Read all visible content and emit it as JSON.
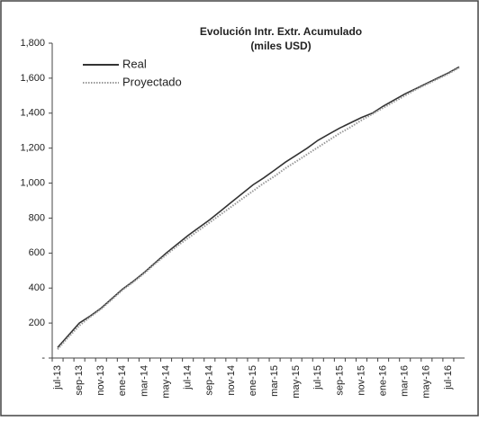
{
  "chart_data": {
    "type": "line",
    "title": "Evolución Intr. Extr. Acumulado",
    "subtitle": "(miles USD)",
    "categories": [
      "jul-13",
      null,
      "sep-13",
      null,
      "nov-13",
      null,
      "ene-14",
      null,
      "mar-14",
      null,
      "may-14",
      null,
      "jul-14",
      null,
      "sep-14",
      null,
      "nov-14",
      null,
      "ene-15",
      null,
      "mar-15",
      null,
      "may-15",
      null,
      "jul-15",
      null,
      "sep-15",
      null,
      "nov-15",
      null,
      "ene-16",
      null,
      "mar-16",
      null,
      "may-16",
      null,
      "jul-16",
      null
    ],
    "series": [
      {
        "name": "Real",
        "color": "#333333",
        "dash": "solid",
        "values": [
          60,
          130,
          200,
          240,
          285,
          340,
          395,
          440,
          490,
          545,
          600,
          650,
          700,
          745,
          790,
          840,
          890,
          940,
          990,
          1030,
          1075,
          1120,
          1160,
          1200,
          1245,
          1280,
          1315,
          1345,
          1375,
          1400,
          1440,
          1475,
          1510,
          1540,
          1570,
          1600,
          1630,
          1665
        ]
      },
      {
        "name": "Proyectado",
        "color": "#999999",
        "dash": "dotted",
        "values": [
          50,
          120,
          185,
          235,
          280,
          335,
          390,
          435,
          485,
          540,
          590,
          640,
          685,
          730,
          775,
          820,
          865,
          910,
          955,
          1000,
          1040,
          1085,
          1125,
          1165,
          1205,
          1245,
          1285,
          1320,
          1360,
          1395,
          1430,
          1465,
          1500,
          1535,
          1565,
          1595,
          1625,
          1660
        ]
      }
    ],
    "ylim": [
      0,
      1800
    ],
    "yticks": [
      {
        "value": 0,
        "label": "-"
      },
      200,
      400,
      600,
      800,
      {
        "value": 1000,
        "label": "1,000"
      },
      {
        "value": 1200,
        "label": "1,200"
      },
      {
        "value": 1400,
        "label": "1,400"
      },
      {
        "value": 1600,
        "label": "1,600"
      },
      {
        "value": 1800,
        "label": "1,800"
      }
    ],
    "grid": false,
    "legend": "top-left"
  }
}
